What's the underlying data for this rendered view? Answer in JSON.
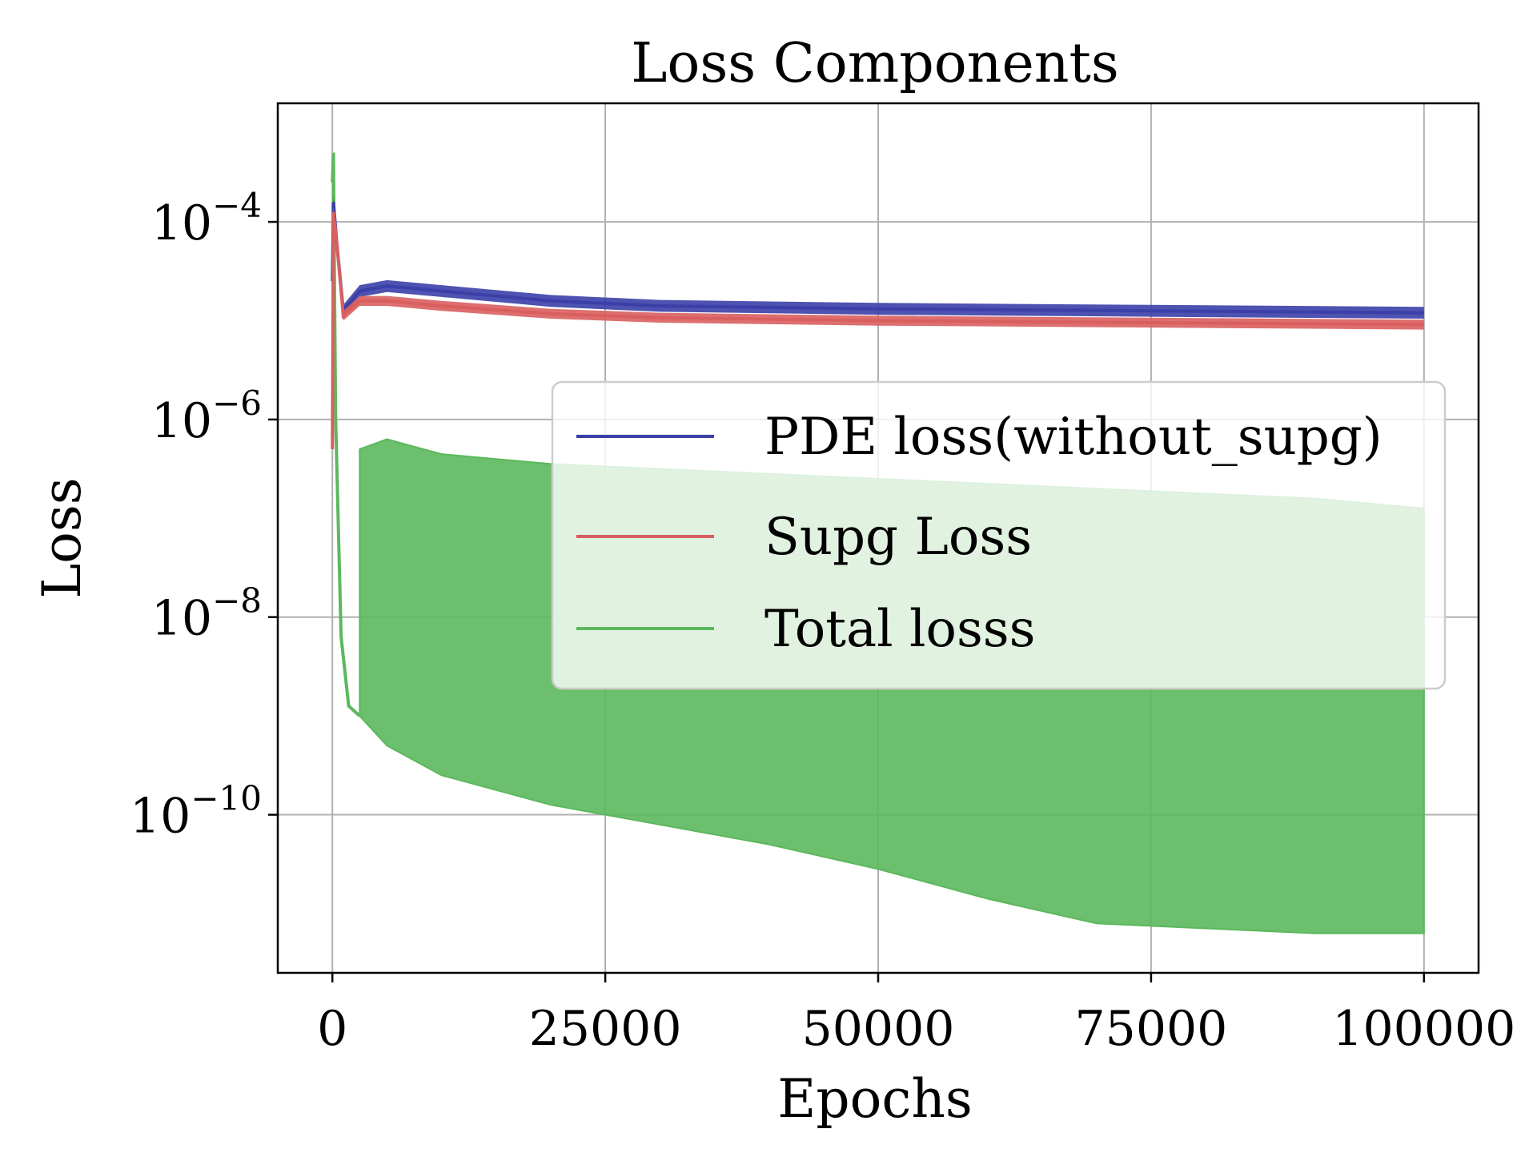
{
  "chart_data": {
    "type": "line",
    "title": "Loss Components",
    "xlabel": "Epochs",
    "ylabel": "Loss",
    "xlim": [
      -5000,
      105000
    ],
    "ylim_log10": [
      -11.6,
      -2.8
    ],
    "yscale": "log",
    "grid": true,
    "legend_placement": "center-right",
    "x_ticks": [
      0,
      25000,
      50000,
      75000,
      100000
    ],
    "x_tick_labels": [
      "0",
      "25000",
      "50000",
      "75000",
      "100000"
    ],
    "y_ticks_log10": [
      -4,
      -6,
      -8,
      -10
    ],
    "y_tick_labels": [
      {
        "base": "10",
        "exp": "−4"
      },
      {
        "base": "10",
        "exp": "−6"
      },
      {
        "base": "10",
        "exp": "−8"
      },
      {
        "base": "10",
        "exp": "−10"
      }
    ],
    "series": [
      {
        "name": "PDE loss(without_supg)",
        "color": "#3b3fa8",
        "x": [
          0,
          100,
          400,
          1000,
          2500,
          5000,
          10000,
          20000,
          30000,
          50000,
          75000,
          100000
        ],
        "y_log10": [
          -4.6,
          -3.8,
          -4.2,
          -4.9,
          -4.7,
          -4.65,
          -4.7,
          -4.8,
          -4.85,
          -4.88,
          -4.9,
          -4.92
        ],
        "band_log10": 0.06
      },
      {
        "name": "Supg Loss",
        "color": "#d95f5f",
        "x": [
          0,
          100,
          400,
          1000,
          2500,
          5000,
          10000,
          20000,
          30000,
          50000,
          75000,
          100000
        ],
        "y_log10": [
          -6.3,
          -3.9,
          -4.2,
          -4.95,
          -4.8,
          -4.8,
          -4.85,
          -4.93,
          -4.97,
          -5.0,
          -5.02,
          -5.04
        ],
        "band_log10": 0.05
      },
      {
        "name": "Total losss",
        "color": "#5cb85c",
        "x_peak": [
          0,
          100,
          300,
          800,
          1500,
          2500
        ],
        "y_peak_log10": [
          -3.6,
          -3.3,
          -6.0,
          -8.2,
          -8.9,
          -9.0
        ],
        "x_band": [
          2500,
          5000,
          10000,
          20000,
          30000,
          40000,
          50000,
          60000,
          70000,
          80000,
          90000,
          100000
        ],
        "upper_log10": [
          -6.3,
          -6.2,
          -6.35,
          -6.45,
          -6.5,
          -6.55,
          -6.6,
          -6.65,
          -6.7,
          -6.75,
          -6.8,
          -6.9
        ],
        "lower_log10": [
          -9.0,
          -9.3,
          -9.6,
          -9.9,
          -10.1,
          -10.3,
          -10.55,
          -10.85,
          -11.1,
          -11.15,
          -11.2,
          -11.2
        ]
      }
    ]
  }
}
